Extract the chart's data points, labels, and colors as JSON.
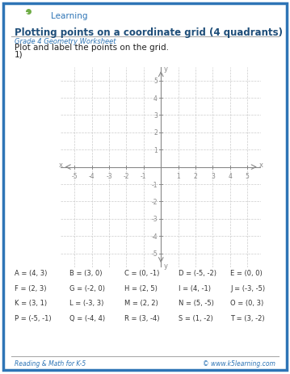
{
  "title": "Plotting points on a coordinate grid (4 quadrants)",
  "subtitle": "Grade 4 Geometry Worksheet",
  "instruction": "Plot and label the points on the grid.",
  "problem_number": "1)",
  "axis_min": -5,
  "axis_max": 5,
  "grid_color": "#cccccc",
  "axis_color": "#888888",
  "tick_color": "#888888",
  "bg_color": "#ffffff",
  "border_color": "#2e75b6",
  "title_color": "#1f4e79",
  "subtitle_color": "#2e75b6",
  "footer_color": "#2e75b6",
  "points_table": [
    [
      "A = (4, 3)",
      "B = (3, 0)",
      "C = (0, -1)",
      "D = (-5, -2)",
      "E = (0, 0)"
    ],
    [
      "F = (2, 3)",
      "G = (-2, 0)",
      "H = (2, 5)",
      "I = (4, -1)",
      "J = (-3, -5)"
    ],
    [
      "K = (3, 1)",
      "L = (-3, 3)",
      "M = (2, 2)",
      "N = (5, -5)",
      "O = (0, 3)"
    ],
    [
      "P = (-5, -1)",
      "Q = (-4, 4)",
      "R = (3, -4)",
      "S = (1, -2)",
      "T = (3, -2)"
    ]
  ],
  "footer_left": "Reading & Math for K-5",
  "footer_right": "© www.k5learning.com"
}
